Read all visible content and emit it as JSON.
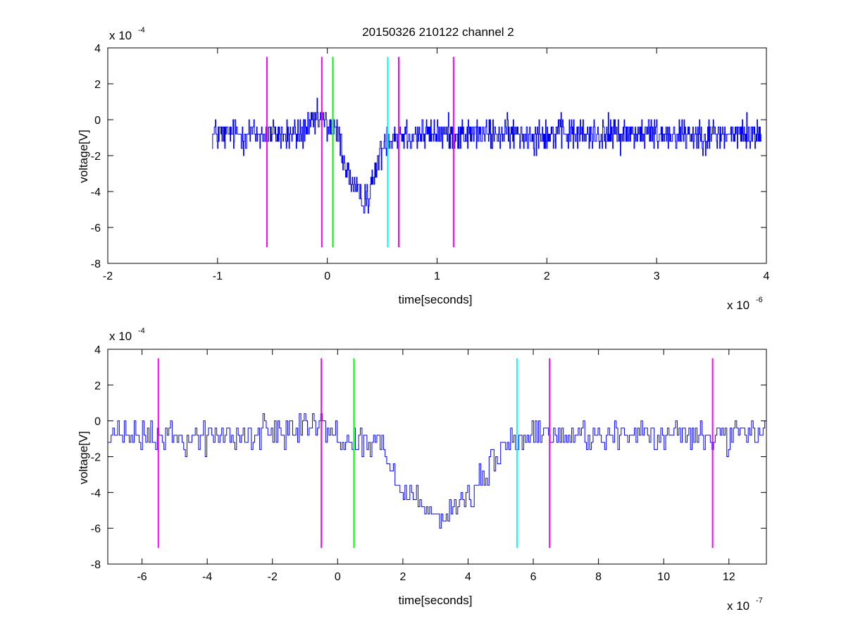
{
  "chart_data": [
    {
      "type": "line",
      "title": "20150326 210122 channel 2",
      "xlabel": "time[seconds]",
      "ylabel": "voltage[V]",
      "x_multiplier_label": "x 10",
      "x_multiplier_exp": "-6",
      "y_multiplier_label": "x 10",
      "y_multiplier_exp": "-4",
      "x_unit_scale": 1e-06,
      "y_unit_scale": 0.0001,
      "xlim": [
        -2,
        4
      ],
      "ylim": [
        -8,
        4
      ],
      "xticks": [
        -2,
        -1,
        0,
        1,
        2,
        3,
        4
      ],
      "xtick_labels": [
        "-2",
        "-1",
        "0",
        "1",
        "2",
        "3",
        "4"
      ],
      "yticks": [
        -8,
        -6,
        -4,
        -2,
        0,
        2,
        4
      ],
      "ytick_labels": [
        "-8",
        "-6",
        "-4",
        "-2",
        "0",
        "2",
        "4"
      ],
      "grid": false,
      "series": [
        {
          "color": "#0000ff",
          "x_start": -1.05,
          "x_end": 3.95,
          "profile": [
            [
              -1.05,
              -0.8
            ],
            [
              -0.6,
              -0.8
            ],
            [
              -0.3,
              -0.9
            ],
            [
              -0.15,
              -0.3
            ],
            [
              -0.05,
              0.0
            ],
            [
              0.1,
              -0.9
            ],
            [
              0.16,
              -2.5
            ],
            [
              0.22,
              -3.6
            ],
            [
              0.3,
              -4.4
            ],
            [
              0.38,
              -4.2
            ],
            [
              0.45,
              -2.5
            ],
            [
              0.52,
              -1.2
            ],
            [
              0.6,
              -0.8
            ],
            [
              3.95,
              -0.8
            ]
          ],
          "noise_amplitude": 0.9,
          "quantum": 0.4,
          "points": 1000
        }
      ],
      "markers": [
        {
          "x": -0.55,
          "y_from": -7.1,
          "y_to": 3.5,
          "color": "#ff00ff"
        },
        {
          "x": -0.05,
          "y_from": -7.1,
          "y_to": 3.5,
          "color": "#ff00ff"
        },
        {
          "x": 0.05,
          "y_from": -7.1,
          "y_to": 3.5,
          "color": "#00ff00"
        },
        {
          "x": 0.55,
          "y_from": -7.1,
          "y_to": 3.5,
          "color": "#00ffff"
        },
        {
          "x": 0.65,
          "y_from": -7.1,
          "y_to": 3.5,
          "color": "#ff00ff"
        },
        {
          "x": 1.15,
          "y_from": -7.1,
          "y_to": 3.5,
          "color": "#ff00ff"
        }
      ]
    },
    {
      "type": "line",
      "title": "",
      "xlabel": "time[seconds]",
      "ylabel": "voltage[V]",
      "x_multiplier_label": "x 10",
      "x_multiplier_exp": "-7",
      "y_multiplier_label": "x 10",
      "y_multiplier_exp": "-4",
      "x_unit_scale": 1e-07,
      "y_unit_scale": 0.0001,
      "xlim": [
        -7.05,
        13.15
      ],
      "ylim": [
        -8,
        4
      ],
      "xticks": [
        -6,
        -4,
        -2,
        0,
        2,
        4,
        6,
        8,
        10,
        12
      ],
      "xtick_labels": [
        "-6",
        "-4",
        "-2",
        "0",
        "2",
        "4",
        "6",
        "8",
        "10",
        "12"
      ],
      "yticks": [
        -8,
        -6,
        -4,
        -2,
        0,
        2,
        4
      ],
      "ytick_labels": [
        "-8",
        "-6",
        "-4",
        "-2",
        "0",
        "2",
        "4"
      ],
      "grid": false,
      "series": [
        {
          "color": "#0000ff",
          "x_start": -7.05,
          "x_end": 13.15,
          "profile": [
            [
              -7.05,
              -0.9
            ],
            [
              -3.0,
              -0.9
            ],
            [
              -2.0,
              -0.6
            ],
            [
              -1.0,
              0.1
            ],
            [
              -0.5,
              -0.3
            ],
            [
              0.0,
              -1.0
            ],
            [
              1.2,
              -1.2
            ],
            [
              1.6,
              -2.6
            ],
            [
              2.0,
              -3.8
            ],
            [
              2.6,
              -4.4
            ],
            [
              3.2,
              -5.6
            ],
            [
              3.6,
              -4.8
            ],
            [
              4.2,
              -4.0
            ],
            [
              5.0,
              -1.5
            ],
            [
              6.0,
              -0.8
            ],
            [
              13.15,
              -0.9
            ]
          ],
          "noise_amplitude": 0.9,
          "quantum": 0.4,
          "points": 400
        }
      ],
      "markers": [
        {
          "x": -5.5,
          "y_from": -7.1,
          "y_to": 3.5,
          "color": "#ff00ff"
        },
        {
          "x": -0.5,
          "y_from": -7.1,
          "y_to": 3.5,
          "color": "#ff00ff"
        },
        {
          "x": 0.5,
          "y_from": -7.1,
          "y_to": 3.5,
          "color": "#00ff00"
        },
        {
          "x": 5.5,
          "y_from": -7.1,
          "y_to": 3.5,
          "color": "#00ffff"
        },
        {
          "x": 6.5,
          "y_from": -7.1,
          "y_to": 3.5,
          "color": "#ff00ff"
        },
        {
          "x": 11.5,
          "y_from": -7.1,
          "y_to": 3.5,
          "color": "#ff00ff"
        }
      ]
    }
  ]
}
